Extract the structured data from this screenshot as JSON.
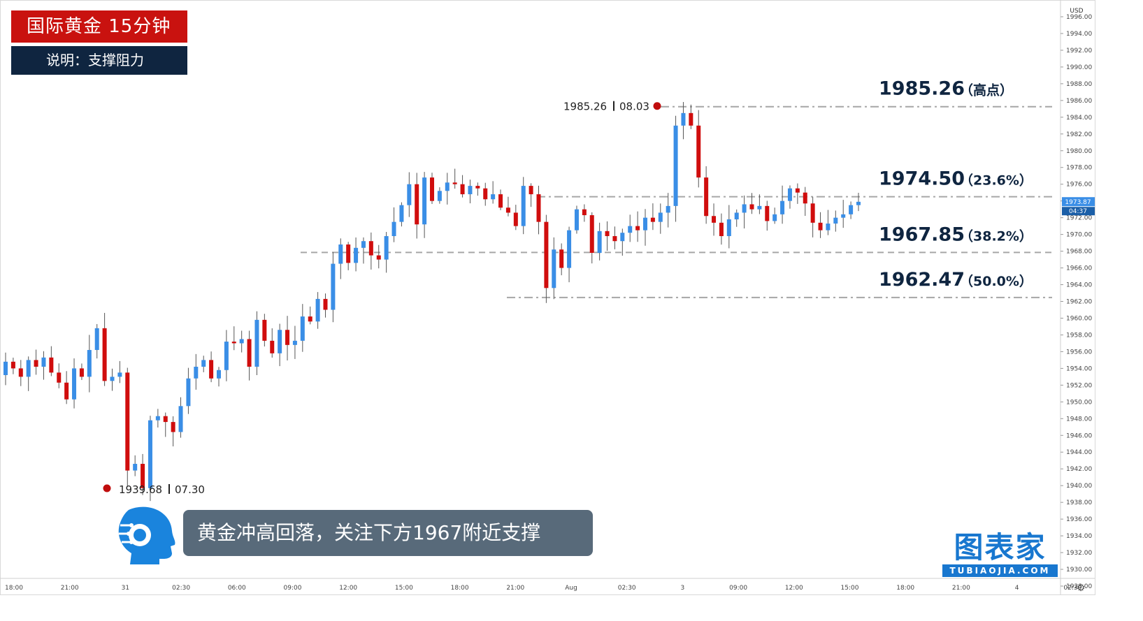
{
  "header": {
    "title": "国际黄金  15分钟",
    "subtitle": "说明：支撑阻力"
  },
  "caption": "黄金冲高回落，关注下方1967附近支撑",
  "brand": {
    "main": "图表家",
    "sub": "TUBIAOJIA.COM"
  },
  "colors": {
    "up": "#3a8ee6",
    "down": "#d00d0d",
    "title_bg": "#c9120f",
    "subtitle_bg": "#0f2540",
    "caption_bg": "#586a7a",
    "brand": "#1877cf",
    "level_line": "#a6a6a6"
  },
  "chart_data": {
    "type": "candlestick",
    "currency": "USD",
    "ylim": [
      1927,
      1997
    ],
    "yticks": [
      1928,
      1930,
      1932,
      1934,
      1936,
      1938,
      1940,
      1942,
      1944,
      1946,
      1948,
      1950,
      1952,
      1954,
      1956,
      1958,
      1960,
      1962,
      1964,
      1966,
      1968,
      1970,
      1972,
      1974,
      1976,
      1978,
      1980,
      1982,
      1984,
      1986,
      1988,
      1990,
      1992,
      1994,
      1996
    ],
    "xticks": [
      "18:00",
      "21:00",
      "31",
      "02:30",
      "06:00",
      "09:00",
      "12:00",
      "15:00",
      "18:00",
      "21:00",
      "Aug",
      "02:30",
      "3",
      "09:00",
      "12:00",
      "15:00",
      "18:00",
      "21:00",
      "4",
      "02:30"
    ],
    "last_price": {
      "value": "1973.87",
      "countdown": "04:37"
    },
    "levels": [
      {
        "value": 1985.26,
        "label": "1985.26",
        "note": "（高点）",
        "style": "dash-dot"
      },
      {
        "value": 1974.5,
        "label": "1974.50",
        "note": "（23.6%）",
        "style": "dash-dot"
      },
      {
        "value": 1967.85,
        "label": "1967.85",
        "note": "（38.2%）",
        "style": "dashed"
      },
      {
        "value": 1962.47,
        "label": "1962.47",
        "note": "（50.0%）",
        "style": "dash-dot"
      }
    ],
    "annotations": [
      {
        "price": "1939.68",
        "date": "07.30",
        "value": 1939.68,
        "type": "low"
      },
      {
        "price": "1985.26",
        "date": "08.03",
        "value": 1985.26,
        "type": "high"
      }
    ],
    "candles_path": [
      1953.2,
      1954.8,
      1954.0,
      1953.0,
      1955.0,
      1954.2,
      1955.3,
      1953.5,
      1952.3,
      1950.3,
      1954.0,
      1953.0,
      1956.2,
      1958.8,
      1952.5,
      1953.0,
      1953.5,
      1941.8,
      1942.6,
      1939.7,
      1947.8,
      1948.3,
      1947.6,
      1946.4,
      1949.5,
      1952.8,
      1954.2,
      1955.0,
      1952.8,
      1953.8,
      1957.2,
      1957.0,
      1957.5,
      1954.2,
      1959.8,
      1957.3,
      1955.8,
      1958.6,
      1956.8,
      1957.3,
      1960.2,
      1959.6,
      1962.3,
      1961.0,
      1966.5,
      1968.8,
      1966.6,
      1968.4,
      1969.2,
      1967.5,
      1967.0,
      1969.8,
      1971.5,
      1973.5,
      1976.0,
      1971.2,
      1976.8,
      1974.0,
      1975.2,
      1976.2,
      1976.0,
      1974.8,
      1975.8,
      1975.5,
      1974.2,
      1974.8,
      1973.2,
      1972.6,
      1971.0,
      1975.8,
      1974.8,
      1971.5,
      1963.6,
      1968.2,
      1966.0,
      1970.5,
      1973.0,
      1972.3,
      1967.8,
      1970.4,
      1969.8,
      1969.2,
      1970.2,
      1971.0,
      1970.5,
      1972.0,
      1971.5,
      1972.6,
      1973.4,
      1983.0,
      1984.5,
      1983.0,
      1976.8,
      1972.2,
      1971.4,
      1969.8,
      1971.8,
      1972.6,
      1973.6,
      1973.0,
      1973.4,
      1971.6,
      1972.4,
      1974.0,
      1975.5,
      1975.0,
      1973.7,
      1971.4,
      1970.5,
      1971.3,
      1972.0,
      1972.4,
      1973.5,
      1973.9
    ]
  }
}
